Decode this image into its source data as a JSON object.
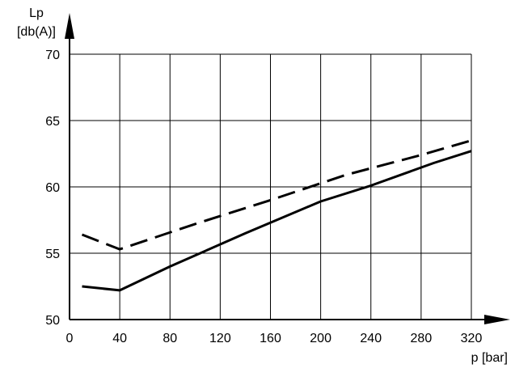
{
  "chart_data": {
    "type": "line",
    "title": "",
    "ylabel_line1": "Lp",
    "ylabel_line2": "[db(A)]",
    "xlabel": "p [bar]",
    "xlim": [
      0,
      320
    ],
    "ylim": [
      50,
      70
    ],
    "xticks": [
      0,
      40,
      80,
      120,
      160,
      200,
      240,
      280,
      320
    ],
    "yticks": [
      50,
      55,
      60,
      65,
      70
    ],
    "grid": true,
    "legend": "none",
    "series": [
      {
        "style": "dashed",
        "color": "#000000",
        "x": [
          10,
          40,
          100,
          160,
          220,
          280,
          320
        ],
        "y": [
          56.4,
          55.3,
          57.2,
          59.0,
          60.9,
          62.4,
          63.5
        ]
      },
      {
        "style": "solid",
        "color": "#000000",
        "x": [
          10,
          40,
          80,
          140,
          200,
          240,
          290,
          320
        ],
        "y": [
          52.5,
          52.2,
          54.0,
          56.5,
          58.9,
          60.1,
          61.8,
          62.7
        ]
      }
    ]
  }
}
